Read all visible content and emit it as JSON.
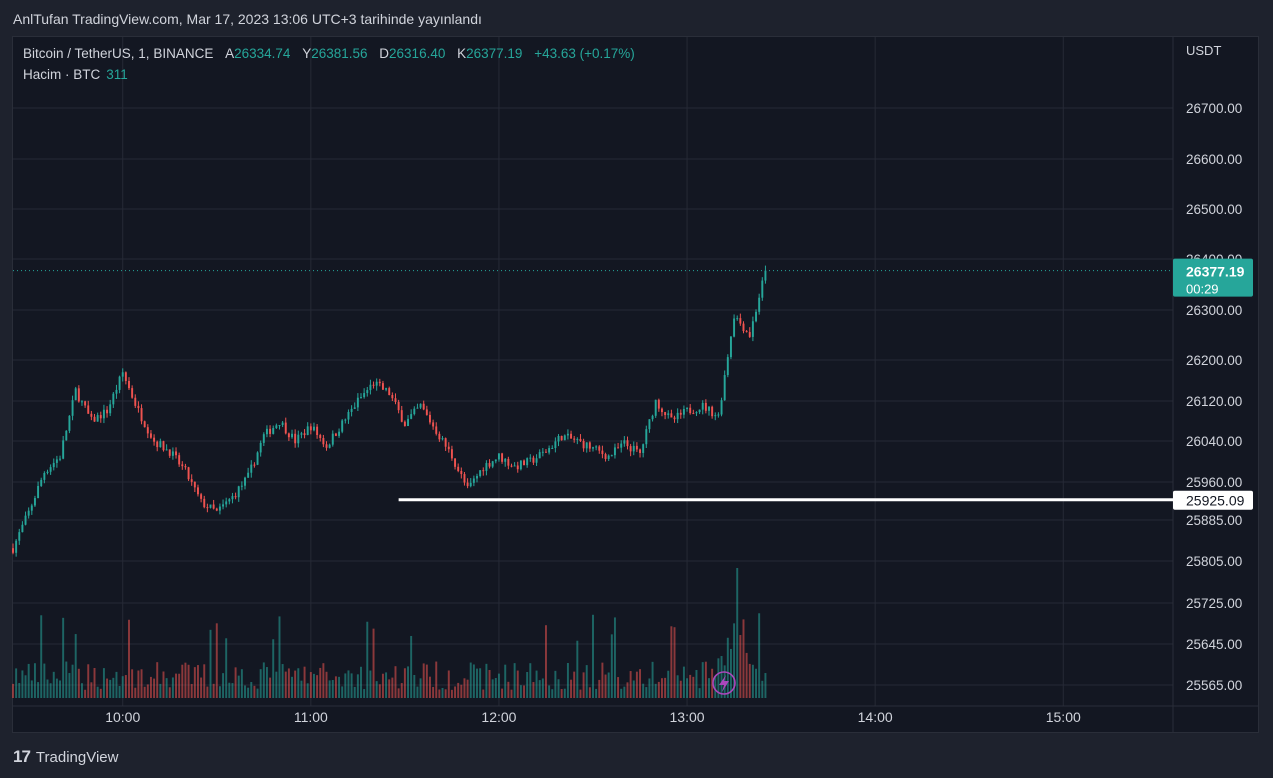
{
  "header": {
    "publisher_line": "AnlTufan TradingView.com, Mar 17, 2023 13:06 UTC+3 tarihinde yayınlandı"
  },
  "legend": {
    "symbol": "Bitcoin / TetherUS, 1, BINANCE",
    "open_label": "A",
    "open": "26334.74",
    "high_label": "Y",
    "high": "26381.56",
    "low_label": "D",
    "low": "26316.40",
    "close_label": "K",
    "close": "26377.19",
    "change": "+43.63 (+0.17%)",
    "volume_label": "Hacim · BTC",
    "volume_value": "311"
  },
  "footer": {
    "brand": "TradingView",
    "logo_glyph": "17"
  },
  "colors": {
    "up": "#26a69a",
    "down": "#ef5350",
    "bg": "#131722",
    "grid": "#262a36",
    "text": "#d1d4dc"
  },
  "chart_data": {
    "type": "candlestick",
    "currency": "USDT",
    "price_ticks": [
      25565,
      25645,
      25725,
      25805,
      25885,
      25960,
      26040,
      26120,
      26200,
      26300,
      26400,
      26500,
      26600,
      26700
    ],
    "price_tick_labels": [
      "25565.00",
      "25645.00",
      "25725.00",
      "25805.00",
      "25885.00",
      "25960.00",
      "26040.00",
      "26120.00",
      "26200.00",
      "26300.00",
      "26400.00",
      "26500.00",
      "26600.00",
      "26700.00"
    ],
    "time_ticks": [
      "10:00",
      "11:00",
      "12:00",
      "13:00",
      "14:00",
      "15:00"
    ],
    "time_range": [
      "09:25",
      "15:35"
    ],
    "current_price": {
      "label": "26377.19",
      "countdown": "00:29",
      "value": 26377.19
    },
    "horizontal_line": {
      "label": "25925.09",
      "value": 25925.09,
      "start": "11:28"
    },
    "price_path": [
      [
        "09:25",
        25830
      ],
      [
        "09:30",
        25900
      ],
      [
        "09:35",
        25980
      ],
      [
        "09:40",
        26010
      ],
      [
        "09:45",
        26140
      ],
      [
        "09:50",
        26080
      ],
      [
        "09:55",
        26100
      ],
      [
        "10:00",
        26175
      ],
      [
        "10:05",
        26100
      ],
      [
        "10:10",
        26040
      ],
      [
        "10:15",
        26020
      ],
      [
        "10:20",
        25980
      ],
      [
        "10:25",
        25920
      ],
      [
        "10:30",
        25900
      ],
      [
        "10:35",
        25930
      ],
      [
        "10:40",
        25970
      ],
      [
        "10:45",
        26050
      ],
      [
        "10:50",
        26080
      ],
      [
        "10:55",
        26040
      ],
      [
        "11:00",
        26070
      ],
      [
        "11:05",
        26030
      ],
      [
        "11:10",
        26075
      ],
      [
        "11:15",
        26120
      ],
      [
        "11:20",
        26155
      ],
      [
        "11:25",
        26135
      ],
      [
        "11:30",
        26075
      ],
      [
        "11:35",
        26110
      ],
      [
        "11:40",
        26060
      ],
      [
        "11:45",
        26010
      ],
      [
        "11:50",
        25945
      ],
      [
        "11:55",
        25990
      ],
      [
        "12:00",
        26010
      ],
      [
        "12:05",
        25990
      ],
      [
        "12:10",
        26000
      ],
      [
        "12:15",
        26020
      ],
      [
        "12:20",
        26050
      ],
      [
        "12:25",
        26040
      ],
      [
        "12:30",
        26025
      ],
      [
        "12:35",
        26010
      ],
      [
        "12:40",
        26035
      ],
      [
        "12:45",
        26015
      ],
      [
        "12:50",
        26120
      ],
      [
        "12:55",
        26080
      ],
      [
        "13:00",
        26100
      ],
      [
        "13:05",
        26110
      ],
      [
        "13:10",
        26090
      ],
      [
        "13:15",
        26290
      ],
      [
        "13:20",
        26250
      ],
      [
        "13:25",
        26377
      ]
    ],
    "volume_axis_max": 160
  }
}
